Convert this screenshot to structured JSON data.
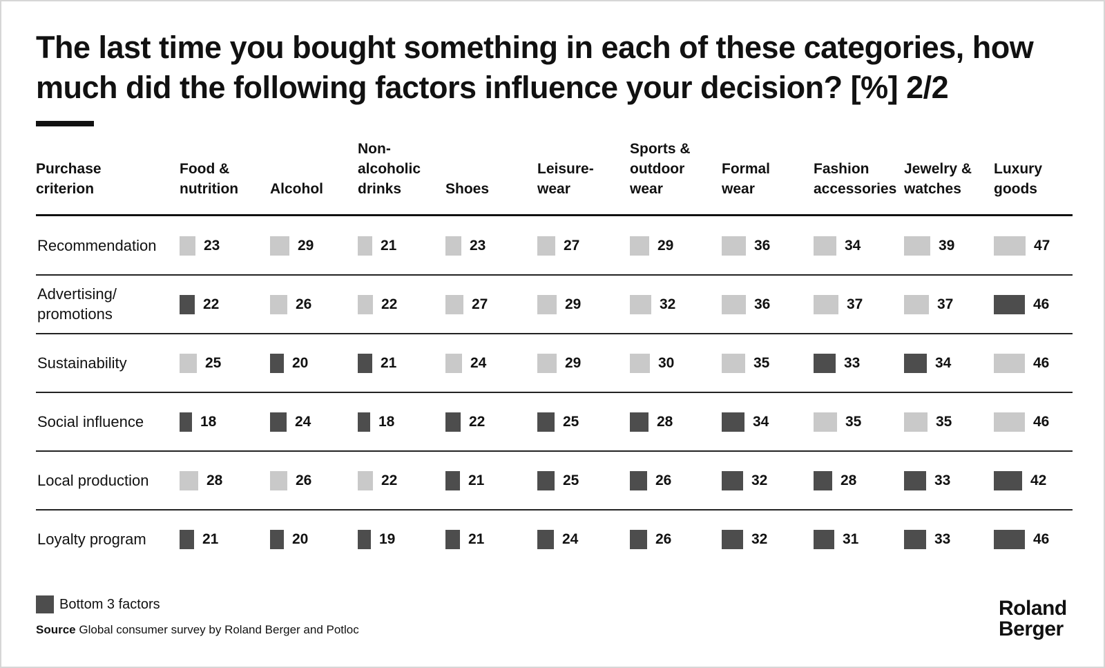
{
  "title": "The last time you bought something in each of these categories, how much did the following factors influence your decision? [%] 2/2",
  "row_header": "Purchase\ncriterion",
  "legend": {
    "label": "Bottom 3 factors"
  },
  "source": {
    "label": "Source",
    "text": "Global consumer survey by Roland Berger and Potloc"
  },
  "logo": {
    "line1": "Roland",
    "line2": "Berger"
  },
  "colors": {
    "light": "#c9c9c9",
    "dark": "#4d4d4d",
    "text": "#111111",
    "rule": "#222222"
  },
  "chart_data": {
    "type": "table",
    "title": "The last time you bought something in each of these categories, how much did the following factors influence your decision? [%] 2/2",
    "columns": [
      "Food &\nnutrition",
      "Alcohol",
      "Non-\nalcoholic\ndrinks",
      "Shoes",
      "Leisure-\nwear",
      "Sports &\noutdoor\nwear",
      "Formal\nwear",
      "Fashion\naccessories",
      "Jewelry &\nwatches",
      "Luxury\ngoods"
    ],
    "rows": [
      {
        "label": "Recommendation",
        "values": [
          23,
          29,
          21,
          23,
          27,
          29,
          36,
          34,
          39,
          47
        ],
        "bottom3": [
          false,
          false,
          false,
          false,
          false,
          false,
          false,
          false,
          false,
          false
        ]
      },
      {
        "label": "Advertising/\npromotions",
        "values": [
          22,
          26,
          22,
          27,
          29,
          32,
          36,
          37,
          37,
          46
        ],
        "bottom3": [
          true,
          false,
          false,
          false,
          false,
          false,
          false,
          false,
          false,
          true
        ]
      },
      {
        "label": "Sustainability",
        "values": [
          25,
          20,
          21,
          24,
          29,
          30,
          35,
          33,
          34,
          46
        ],
        "bottom3": [
          false,
          true,
          true,
          false,
          false,
          false,
          false,
          true,
          true,
          false
        ]
      },
      {
        "label": "Social influence",
        "values": [
          18,
          24,
          18,
          22,
          25,
          28,
          34,
          35,
          35,
          46
        ],
        "bottom3": [
          true,
          true,
          true,
          true,
          true,
          true,
          true,
          false,
          false,
          false
        ]
      },
      {
        "label": "Local production",
        "values": [
          28,
          26,
          22,
          21,
          25,
          26,
          32,
          28,
          33,
          42
        ],
        "bottom3": [
          false,
          false,
          false,
          true,
          true,
          true,
          true,
          true,
          true,
          true
        ]
      },
      {
        "label": "Loyalty program",
        "values": [
          21,
          20,
          19,
          21,
          24,
          26,
          32,
          31,
          33,
          46
        ],
        "bottom3": [
          true,
          true,
          true,
          true,
          true,
          true,
          true,
          true,
          true,
          true
        ]
      }
    ]
  }
}
